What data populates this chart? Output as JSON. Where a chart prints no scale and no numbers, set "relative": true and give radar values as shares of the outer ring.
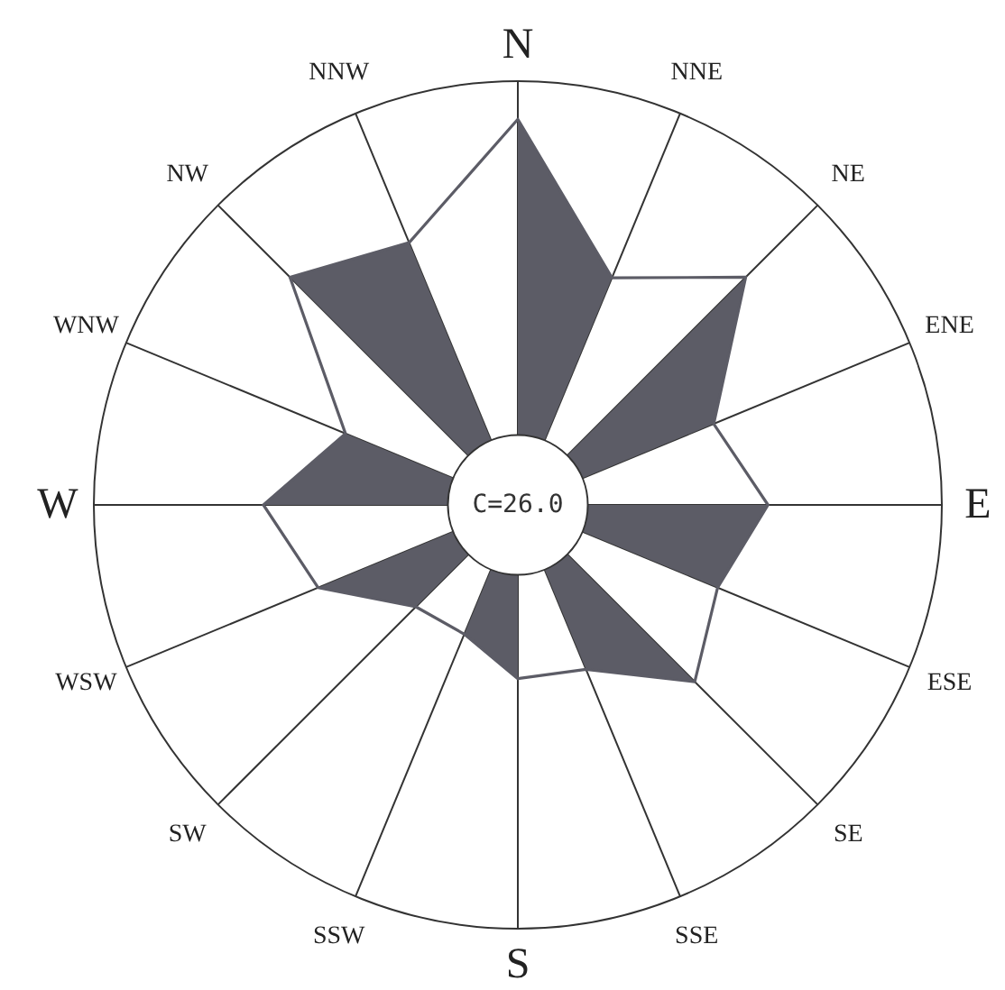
{
  "chart_data": {
    "type": "radar",
    "relative": true,
    "grid": true,
    "categories": [
      "N",
      "NNE",
      "NE",
      "ENE",
      "E",
      "ESE",
      "SE",
      "SSE",
      "S",
      "SSW",
      "SW",
      "WSW",
      "W",
      "WNW",
      "NW",
      "NNW"
    ],
    "series": [
      {
        "color": "#5c5c66",
        "values": [
          0.91,
          0.58,
          0.76,
          0.5,
          0.59,
          0.51,
          0.59,
          0.42,
          0.41,
          0.33,
          0.34,
          0.51,
          0.6,
          0.44,
          0.76,
          0.67
        ]
      }
    ],
    "annotations": [
      "C=26.0"
    ]
  }
}
